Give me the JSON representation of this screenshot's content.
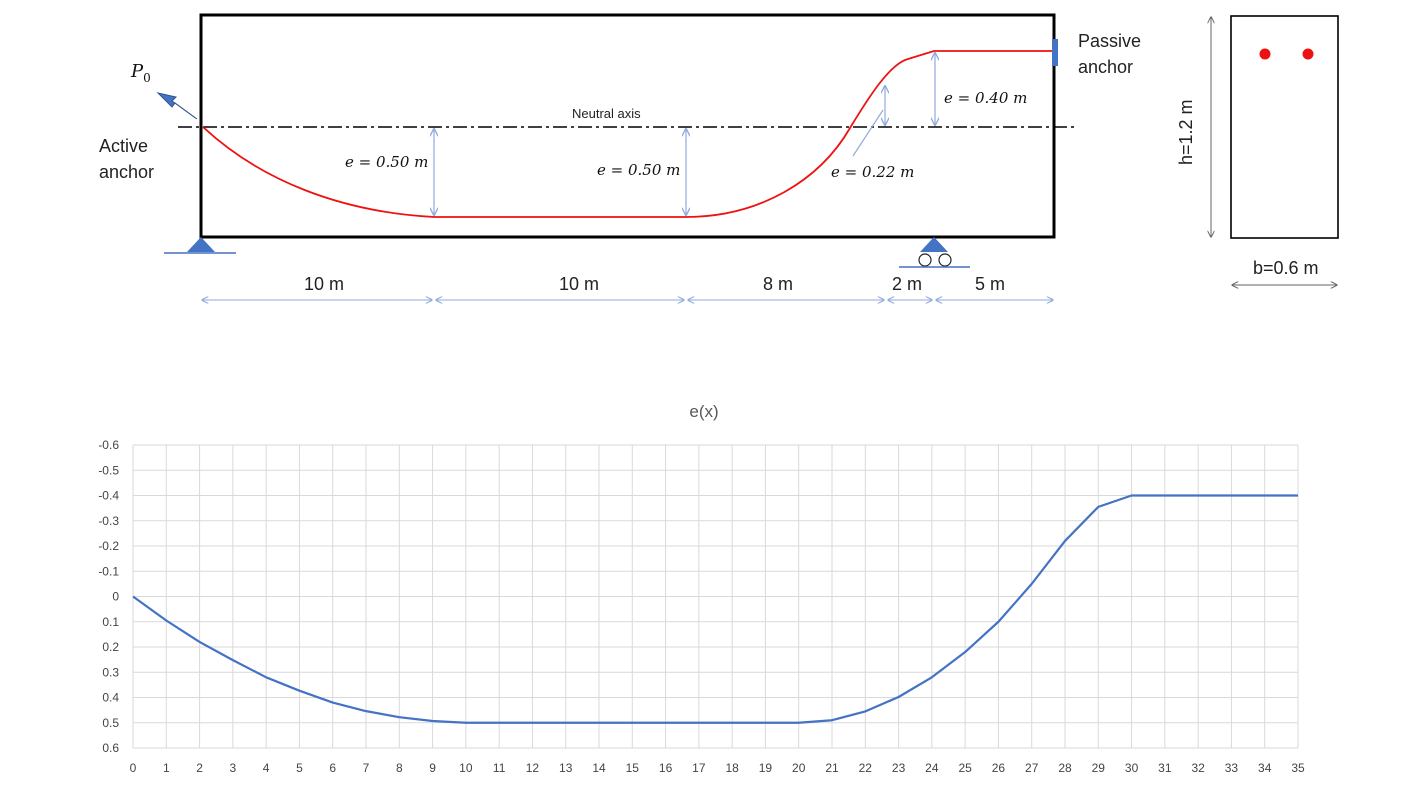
{
  "diagram": {
    "labels": {
      "load": "P",
      "load_sub": "0",
      "active_anchor": [
        "Active",
        "anchor"
      ],
      "passive_anchor": [
        "Passive",
        "anchor"
      ],
      "neutral_axis": "Neutral axis",
      "e1": "e = 0.50 m",
      "e2": "e = 0.50 m",
      "e3": "e = 0.22 m",
      "e4": "e = 0.40 m",
      "height": "h=1.2 m",
      "width": "b=0.6 m"
    },
    "spans": [
      "10 m",
      "10 m",
      "8 m",
      "2 m",
      "5 m"
    ],
    "colors": {
      "tendon": "#ee1111",
      "dimension": "#8faadc",
      "support": "#4472c4"
    }
  },
  "chart_data": {
    "type": "line",
    "title": "e(x)",
    "xlabel": "",
    "ylabel": "",
    "x": [
      0,
      1,
      2,
      3,
      4,
      5,
      6,
      7,
      8,
      9,
      10,
      11,
      12,
      13,
      14,
      15,
      16,
      17,
      18,
      19,
      20,
      21,
      22,
      23,
      24,
      25,
      26,
      27,
      28,
      29,
      30,
      31,
      32,
      33,
      34,
      35
    ],
    "series": [
      {
        "name": "",
        "color": "#4472c4",
        "values": [
          0,
          0.095,
          0.18,
          0.252,
          0.32,
          0.373,
          0.42,
          0.454,
          0.478,
          0.493,
          0.5,
          0.5,
          0.5,
          0.5,
          0.5,
          0.5,
          0.5,
          0.5,
          0.5,
          0.5,
          0.5,
          0.49,
          0.455,
          0.398,
          0.32,
          0.22,
          0.1,
          -0.05,
          -0.22,
          -0.355,
          -0.4,
          -0.4,
          -0.4,
          -0.4,
          -0.4,
          -0.4
        ]
      }
    ],
    "xlim": [
      0,
      35
    ],
    "ylim": [
      -0.6,
      0.6
    ],
    "yticks": [
      "-0.6",
      "-0.5",
      "-0.4",
      "-0.3",
      "-0.2",
      "-0.1",
      "0",
      "0.1",
      "0.2",
      "0.3",
      "0.4",
      "0.5",
      "0.6"
    ],
    "y_reversed": true,
    "grid": true
  }
}
